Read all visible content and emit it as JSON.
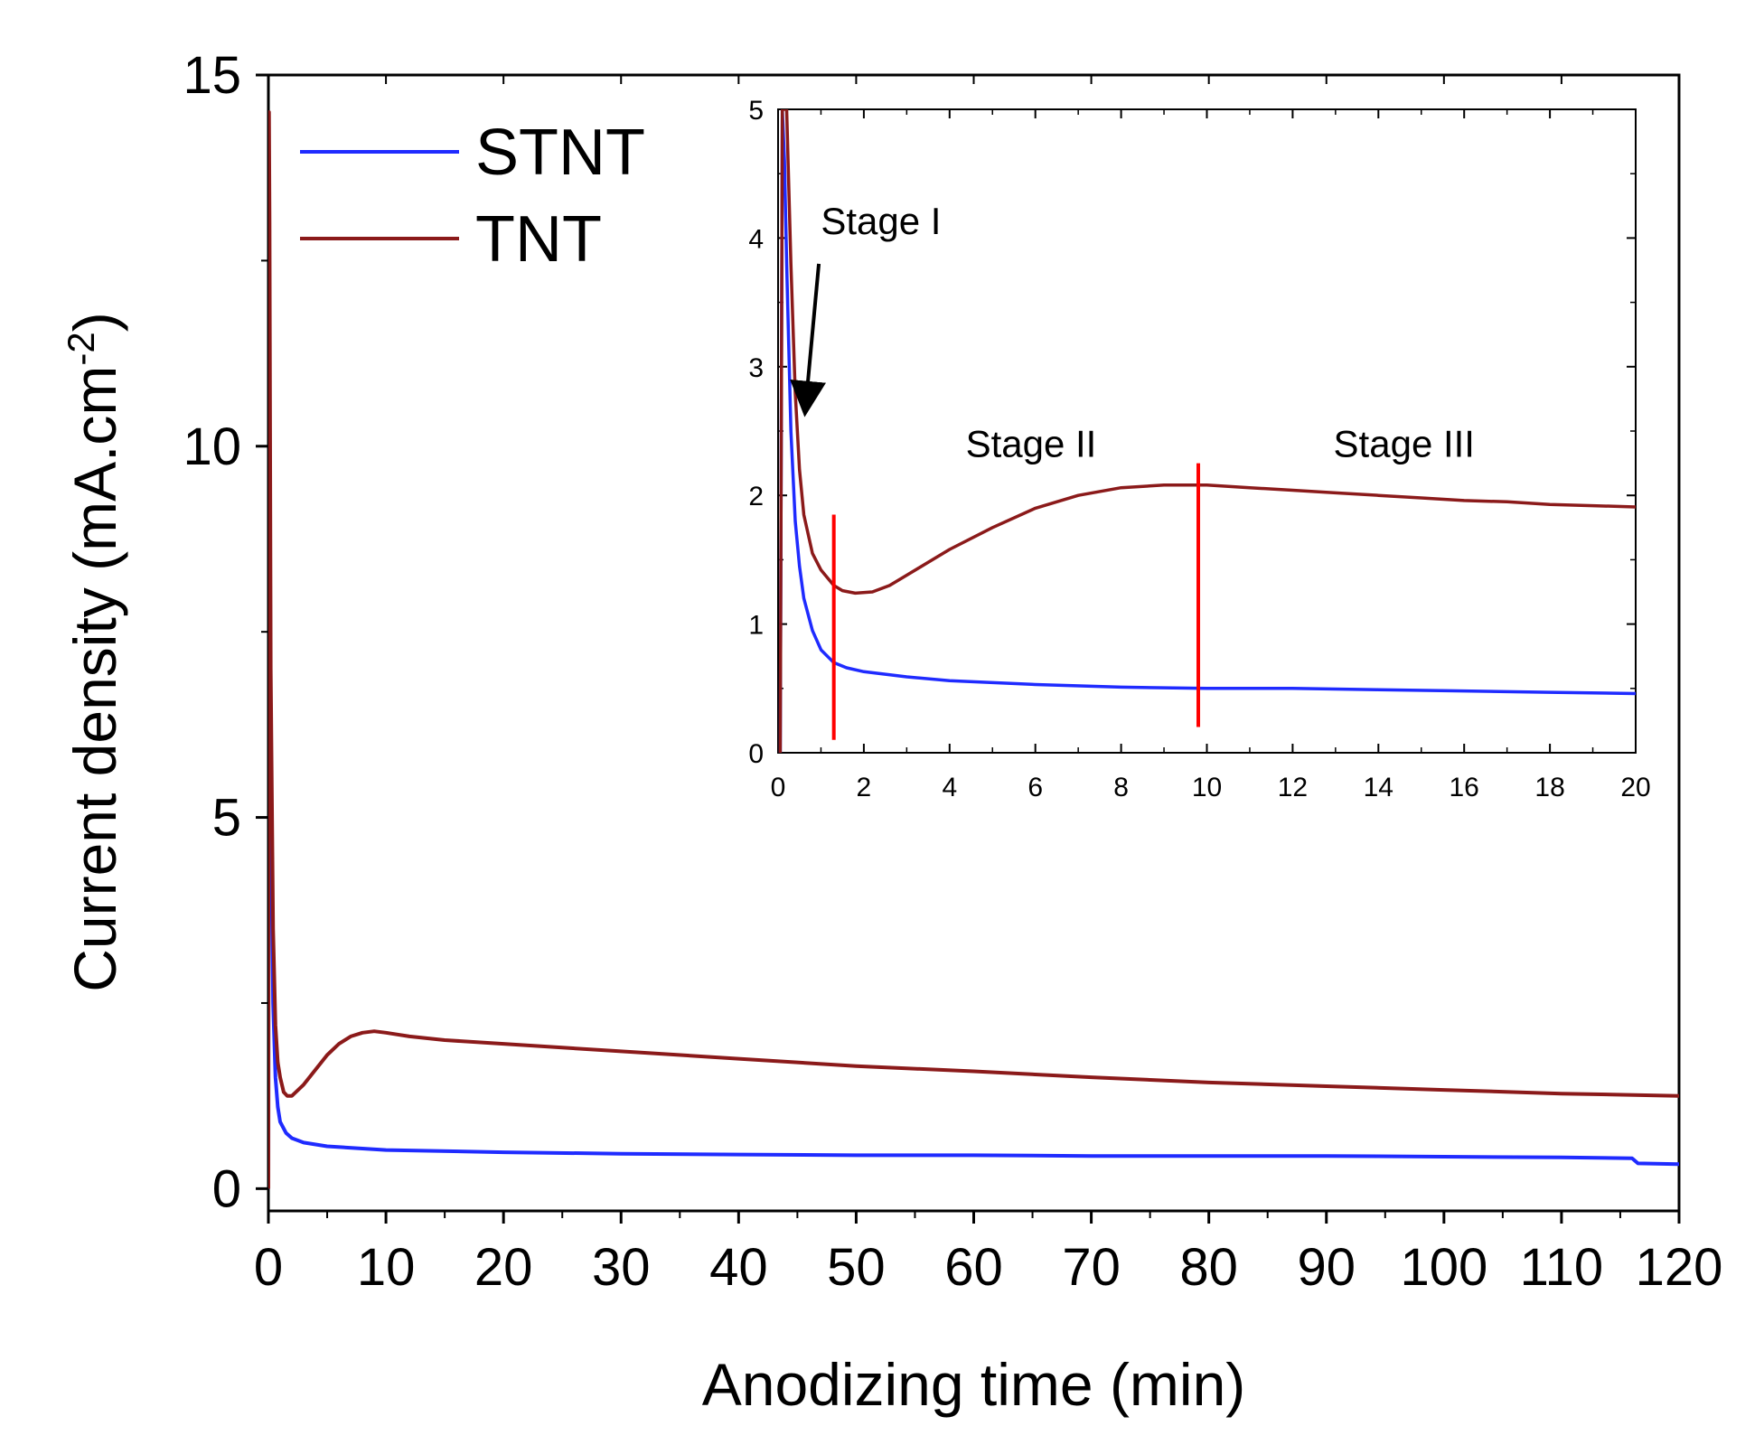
{
  "chart_data": [
    {
      "id": "main",
      "type": "line",
      "xlabel": "Anodizing time (min)",
      "ylabel": "Current density (mA.cm",
      "ylabel_sup": "-2",
      "ylabel_close": ")",
      "xlim": [
        0,
        120
      ],
      "ylim": [
        -0.3,
        15
      ],
      "xticks": [
        0,
        10,
        20,
        30,
        40,
        50,
        60,
        70,
        80,
        90,
        100,
        110,
        120
      ],
      "yticks": [
        0,
        5,
        10,
        15
      ],
      "legend": {
        "position": "top-left",
        "entries": [
          "STNT",
          "TNT"
        ]
      },
      "series": [
        {
          "name": "STNT",
          "color": "#1f2bff",
          "x": [
            0,
            0.05,
            0.1,
            0.2,
            0.4,
            0.6,
            0.8,
            1.0,
            1.5,
            2,
            3,
            5,
            8,
            10,
            20,
            30,
            40,
            50,
            60,
            70,
            80,
            90,
            100,
            110,
            116,
            116.5,
            120
          ],
          "y": [
            0,
            13.0,
            11.0,
            5.5,
            2.5,
            1.5,
            1.1,
            0.9,
            0.75,
            0.68,
            0.62,
            0.57,
            0.54,
            0.52,
            0.49,
            0.47,
            0.46,
            0.45,
            0.45,
            0.44,
            0.44,
            0.44,
            0.43,
            0.42,
            0.41,
            0.34,
            0.33
          ]
        },
        {
          "name": "TNT",
          "color": "#8b1a1a",
          "x": [
            0,
            0.05,
            0.1,
            0.2,
            0.4,
            0.6,
            0.8,
            1.0,
            1.3,
            1.6,
            2,
            3,
            4,
            5,
            6,
            7,
            8,
            9,
            10,
            12,
            15,
            20,
            25,
            30,
            40,
            50,
            60,
            70,
            80,
            90,
            100,
            110,
            120
          ],
          "y": [
            0,
            14.5,
            13.0,
            7.0,
            3.5,
            2.2,
            1.7,
            1.5,
            1.3,
            1.25,
            1.25,
            1.4,
            1.6,
            1.8,
            1.95,
            2.05,
            2.1,
            2.12,
            2.1,
            2.05,
            2.0,
            1.95,
            1.9,
            1.85,
            1.75,
            1.65,
            1.58,
            1.5,
            1.43,
            1.38,
            1.33,
            1.28,
            1.25
          ]
        }
      ]
    },
    {
      "id": "inset",
      "type": "line",
      "xlim": [
        0,
        20
      ],
      "ylim": [
        0,
        5
      ],
      "xticks": [
        0,
        2,
        4,
        6,
        8,
        10,
        12,
        14,
        16,
        18,
        20
      ],
      "yticks": [
        0,
        1,
        2,
        3,
        4,
        5
      ],
      "series": [
        {
          "name": "STNT",
          "color": "#1f2bff",
          "x": [
            0.05,
            0.1,
            0.15,
            0.2,
            0.3,
            0.4,
            0.5,
            0.6,
            0.8,
            1.0,
            1.3,
            1.6,
            2,
            3,
            4,
            6,
            8,
            10,
            12,
            14,
            16,
            18,
            20
          ],
          "y": [
            0,
            5.0,
            4.6,
            3.8,
            2.5,
            1.8,
            1.45,
            1.2,
            0.95,
            0.8,
            0.7,
            0.66,
            0.63,
            0.59,
            0.56,
            0.53,
            0.51,
            0.5,
            0.5,
            0.49,
            0.48,
            0.47,
            0.46
          ]
        },
        {
          "name": "TNT",
          "color": "#8b1a1a",
          "x": [
            0.05,
            0.1,
            0.15,
            0.2,
            0.3,
            0.4,
            0.5,
            0.6,
            0.8,
            1.0,
            1.3,
            1.5,
            1.8,
            2.2,
            2.6,
            3,
            3.5,
            4,
            5,
            6,
            7,
            8,
            9,
            10,
            11,
            12,
            13,
            14,
            15,
            16,
            17,
            18,
            19,
            20
          ],
          "y": [
            0,
            5.0,
            5.0,
            5.0,
            3.8,
            2.8,
            2.2,
            1.85,
            1.55,
            1.42,
            1.3,
            1.26,
            1.24,
            1.25,
            1.3,
            1.38,
            1.48,
            1.58,
            1.75,
            1.9,
            2.0,
            2.06,
            2.08,
            2.08,
            2.06,
            2.04,
            2.02,
            2.0,
            1.98,
            1.96,
            1.95,
            1.93,
            1.92,
            1.91
          ]
        }
      ],
      "stage_lines": [
        {
          "x": 1.3,
          "y_from": 0.1,
          "y_to": 1.85,
          "color": "#ff0000"
        },
        {
          "x": 9.8,
          "y_from": 0.2,
          "y_to": 2.25,
          "color": "#ff0000"
        }
      ],
      "annotations": [
        {
          "text": "Stage I",
          "x": 2.4,
          "y": 4.03
        },
        {
          "text": "Stage II",
          "x": 5.9,
          "y": 2.3
        },
        {
          "text": "Stage III",
          "x": 14.6,
          "y": 2.3
        }
      ],
      "arrow": {
        "from_x": 0.95,
        "from_y": 3.8,
        "to_x": 0.65,
        "to_y": 2.72
      }
    }
  ]
}
